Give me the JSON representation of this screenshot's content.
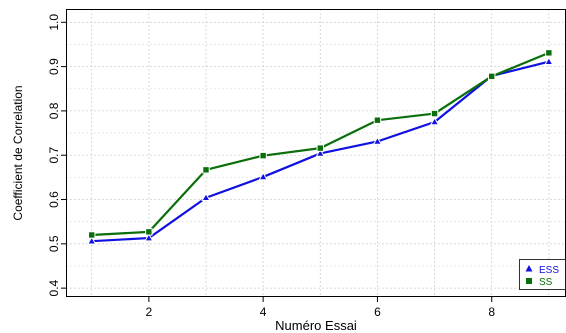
{
  "chart_data": {
    "type": "line",
    "title": "",
    "xlabel": "Numéro Essai",
    "ylabel": "Coefficient de Correlation",
    "x": [
      1,
      2,
      3,
      4,
      5,
      6,
      7,
      8,
      9
    ],
    "xlim": [
      0.55,
      9.3
    ],
    "ylim": [
      0.38,
      1.03
    ],
    "x_ticks": [
      2,
      4,
      6,
      8
    ],
    "y_ticks": [
      0.4,
      0.5,
      0.6,
      0.7,
      0.8,
      0.9,
      1.0
    ],
    "x_tick_labels": [
      "2",
      "4",
      "6",
      "8"
    ],
    "y_tick_labels": [
      "0.4",
      "0.5",
      "0.6",
      "0.7",
      "0.8",
      "0.9",
      "1.0"
    ],
    "grid": true,
    "legend_position": "bottom-right",
    "series": [
      {
        "name": "ESS",
        "color": "#1010e0",
        "marker": "triangle",
        "values": [
          0.506,
          0.513,
          0.604,
          0.651,
          0.704,
          0.731,
          0.775,
          0.879,
          0.911
        ]
      },
      {
        "name": "SS",
        "color": "#0a6e0a",
        "marker": "square",
        "values": [
          0.52,
          0.527,
          0.667,
          0.699,
          0.716,
          0.779,
          0.794,
          0.878,
          0.931
        ]
      }
    ]
  }
}
